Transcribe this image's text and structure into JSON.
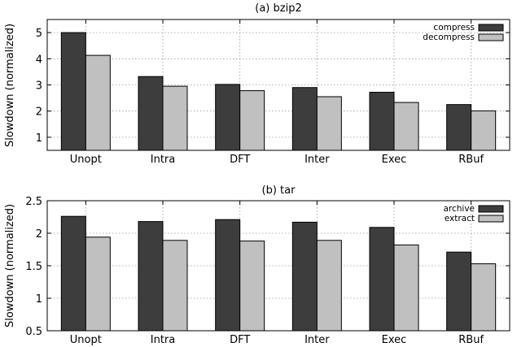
{
  "chart_data": [
    {
      "type": "bar",
      "title": "(a) bzip2",
      "ylabel": "Slowdown (normalized)",
      "xlabel": "",
      "categories": [
        "Unopt",
        "Intra",
        "DFT",
        "Inter",
        "Exec",
        "RBuf"
      ],
      "series": [
        {
          "name": "compress",
          "color": "#3d3d3d",
          "values": [
            5.0,
            3.32,
            3.02,
            2.9,
            2.72,
            2.25
          ]
        },
        {
          "name": "decompress",
          "color": "#c0c0c0",
          "values": [
            4.13,
            2.95,
            2.78,
            2.55,
            2.33,
            2.01
          ]
        }
      ],
      "ylim": [
        0.5,
        5.5
      ],
      "yticks": [
        "1",
        "2",
        "3",
        "4",
        "5"
      ],
      "ytick_values": [
        1,
        2,
        3,
        4,
        5
      ],
      "grid": true,
      "legend": "top-right"
    },
    {
      "type": "bar",
      "title": "(b) tar",
      "ylabel": "Slowdown (normalized)",
      "xlabel": "",
      "categories": [
        "Unopt",
        "Intra",
        "DFT",
        "Inter",
        "Exec",
        "RBuf"
      ],
      "series": [
        {
          "name": "archive",
          "color": "#3d3d3d",
          "values": [
            2.26,
            2.18,
            2.21,
            2.17,
            2.09,
            1.71
          ]
        },
        {
          "name": "extract",
          "color": "#c0c0c0",
          "values": [
            1.94,
            1.89,
            1.88,
            1.89,
            1.82,
            1.53
          ]
        }
      ],
      "ylim": [
        0.5,
        2.5
      ],
      "yticks": [
        "0.5",
        "1",
        "1.5",
        "2",
        "2.5"
      ],
      "ytick_values": [
        0.5,
        1,
        1.5,
        2,
        2.5
      ],
      "grid": true,
      "legend": "top-right"
    }
  ]
}
